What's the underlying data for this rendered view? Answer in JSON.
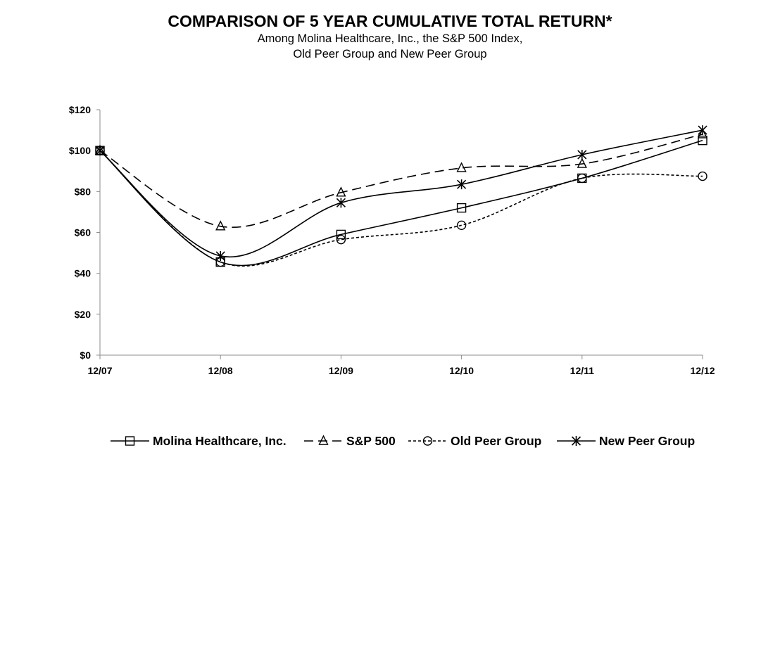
{
  "chart_data": {
    "type": "line",
    "title": "COMPARISON OF 5 YEAR CUMULATIVE TOTAL RETURN*",
    "subtitle_lines": [
      "Among Molina Healthcare, Inc., the S&P 500 Index,",
      "Old Peer Group and New Peer Group"
    ],
    "categories": [
      "12/07",
      "12/08",
      "12/09",
      "12/10",
      "12/11",
      "12/12"
    ],
    "y_tick_labels": [
      "$0",
      "$20",
      "$40",
      "$60",
      "$80",
      "$100",
      "$120"
    ],
    "y_ticks": [
      0,
      20,
      40,
      60,
      80,
      100,
      120
    ],
    "ylim": [
      0,
      120
    ],
    "xlabel": "",
    "ylabel": "",
    "grid": false,
    "legend_position": "bottom",
    "series": [
      {
        "name": "Molina Healthcare, Inc.",
        "marker": "square",
        "dash": "solid",
        "values": [
          100,
          45.5,
          59,
          72,
          86.5,
          105
        ]
      },
      {
        "name": "S&P 500",
        "marker": "triangle",
        "dash": "long-dash",
        "values": [
          100,
          63,
          79.5,
          91.5,
          93.5,
          108
        ]
      },
      {
        "name": "Old Peer Group",
        "marker": "circle",
        "dash": "short-dash",
        "values": [
          100,
          45.5,
          56.5,
          63.5,
          86.5,
          87.5
        ]
      },
      {
        "name": "New Peer Group",
        "marker": "star",
        "dash": "solid",
        "values": [
          100,
          48.5,
          74.5,
          83.5,
          98,
          110
        ]
      }
    ]
  }
}
